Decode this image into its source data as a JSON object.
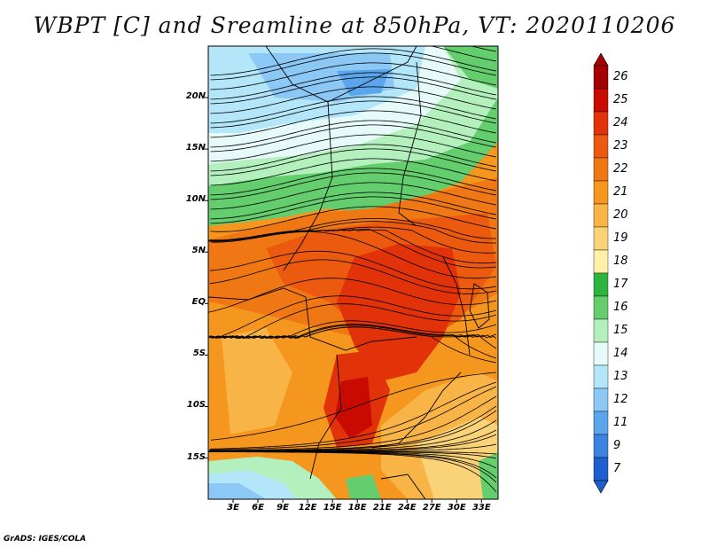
{
  "title": "WBPT [C] and Sreamline at 850hPa, VT: 2020110206",
  "footer": "GrADS: IGES/COLA",
  "map": {
    "lon_range": [
      0,
      35
    ],
    "lat_range": [
      -19,
      25
    ],
    "lat_ticks": [
      {
        "lat": 20,
        "label": "20N"
      },
      {
        "lat": 15,
        "label": "15N"
      },
      {
        "lat": 10,
        "label": "10N"
      },
      {
        "lat": 5,
        "label": "5N"
      },
      {
        "lat": 0,
        "label": "EQ"
      },
      {
        "lat": -5,
        "label": "5S"
      },
      {
        "lat": -10,
        "label": "10S"
      },
      {
        "lat": -15,
        "label": "15S"
      }
    ],
    "lon_ticks": [
      {
        "lon": 3,
        "label": "3E"
      },
      {
        "lon": 6,
        "label": "6E"
      },
      {
        "lon": 9,
        "label": "9E"
      },
      {
        "lon": 12,
        "label": "12E"
      },
      {
        "lon": 15,
        "label": "15E"
      },
      {
        "lon": 18,
        "label": "18E"
      },
      {
        "lon": 21,
        "label": "21E"
      },
      {
        "lon": 24,
        "label": "24E"
      },
      {
        "lon": 27,
        "label": "27E"
      },
      {
        "lon": 30,
        "label": "30E"
      },
      {
        "lon": 33,
        "label": "33E"
      }
    ]
  },
  "colorbar": {
    "levels": [
      {
        "label": "26",
        "color": "#a50000"
      },
      {
        "label": "25",
        "color": "#c80a00"
      },
      {
        "label": "24",
        "color": "#e1320a"
      },
      {
        "label": "23",
        "color": "#eb5a0f"
      },
      {
        "label": "22",
        "color": "#f07814"
      },
      {
        "label": "21",
        "color": "#f5961e"
      },
      {
        "label": "20",
        "color": "#f8b446"
      },
      {
        "label": "19",
        "color": "#fad278"
      },
      {
        "label": "18",
        "color": "#fff0aa"
      },
      {
        "label": "17",
        "color": "#2db43c"
      },
      {
        "label": "16",
        "color": "#64cd6e"
      },
      {
        "label": "15",
        "color": "#b4f0be"
      },
      {
        "label": "14",
        "color": "#e6fafa"
      },
      {
        "label": "13",
        "color": "#b4e6fa"
      },
      {
        "label": "12",
        "color": "#8cc8f5"
      },
      {
        "label": "11",
        "color": "#5aa5eb"
      },
      {
        "label": "9",
        "color": "#3c82e1"
      },
      {
        "label": "7",
        "color": "#1e5fcd"
      }
    ],
    "top_color": "#a50000",
    "bottom_color": "#1e5fcd"
  }
}
